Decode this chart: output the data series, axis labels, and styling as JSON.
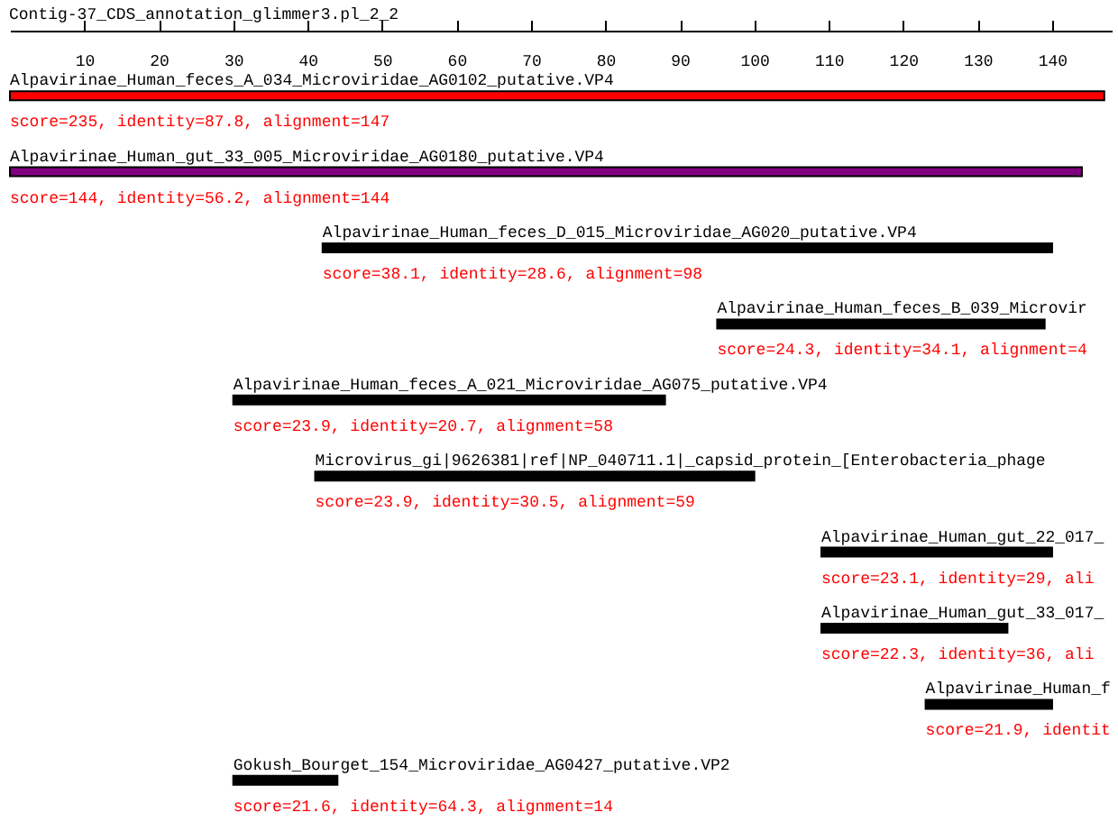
{
  "chart_data": {
    "type": "bar",
    "orientation": "horizontal",
    "title": "Contig-37_CDS_annotation_glimmer3.pl_2_2",
    "categories": [
      "Alpavirinae_Human_feces_A_034_Microviridae_AG0102_putative.VP4",
      "Alpavirinae_Human_gut_33_005_Microviridae_AG0180_putative.VP4",
      "Alpavirinae_Human_feces_D_015_Microviridae_AG020_putative.VP4",
      "Alpavirinae_Human_feces_B_039_Microvir",
      "Alpavirinae_Human_feces_A_021_Microviridae_AG075_putative.VP4",
      "Microvirus_gi|9626381|ref|NP_040711.1|_capsid_protein_[Enterobacteria_phage",
      "Alpavirinae_Human_gut_22_017_",
      "Alpavirinae_Human_gut_33_017_",
      "Alpavirinae_Human_f",
      "Gokush_Bourget_154_Microviridae_AG0427_putative.VP2"
    ],
    "base": [
      0,
      0,
      42,
      95,
      30,
      41,
      109,
      109,
      123,
      30
    ],
    "values": [
      147,
      144,
      98,
      44,
      58,
      59,
      31,
      25,
      17,
      14
    ],
    "colors": [
      "#ff0000",
      "#800080",
      "#000000",
      "#000000",
      "#000000",
      "#000000",
      "#000000",
      "#000000",
      "#000000",
      "#000000"
    ],
    "xlim": [
      0,
      148
    ],
    "xticks": [
      10,
      20,
      30,
      40,
      50,
      60,
      70,
      80,
      90,
      100,
      110,
      120,
      130,
      140
    ],
    "tick_labels": "x",
    "annotations": [
      "score=235, identity=87.8, alignment=147",
      "score=144, identity=56.2, alignment=144",
      "score=38.1, identity=28.6, alignment=98",
      "score=24.3, identity=34.1, alignment=4",
      "score=23.9, identity=20.7, alignment=58",
      "score=23.9, identity=30.5, alignment=59",
      "score=23.1, identity=29, ali",
      "score=22.3, identity=36, ali",
      "score=21.9, identit",
      "score=21.6, identity=64.3, alignment=14"
    ]
  }
}
